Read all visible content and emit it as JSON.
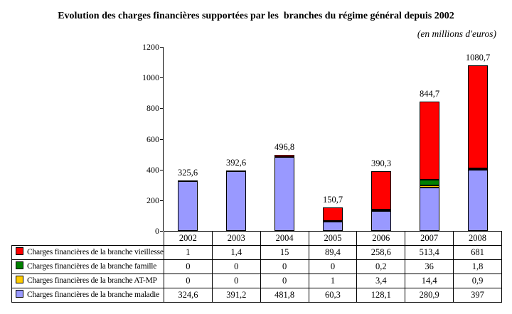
{
  "title": "Evolution des charges financières supportées par les  branches du régime général depuis 2002",
  "subtitle": "(en millions d'euros)",
  "chart_data": {
    "type": "bar",
    "stacked": true,
    "title": "Evolution des charges financières supportées par les  branches du régime général depuis 2002",
    "unit_note": "(en millions d'euros)",
    "categories": [
      "2002",
      "2003",
      "2004",
      "2005",
      "2006",
      "2007",
      "2008"
    ],
    "series": [
      {
        "name": "Charges financières de la branche vieillesse",
        "color": "#ff0000",
        "values": [
          1,
          1.4,
          15,
          89.4,
          258.6,
          513.4,
          681
        ],
        "labels": [
          "1",
          "1,4",
          "15",
          "89,4",
          "258,6",
          "513,4",
          "681"
        ]
      },
      {
        "name": "Charges financières de la branche famille",
        "color": "#008000",
        "values": [
          0,
          0,
          0,
          0,
          0.2,
          36,
          1.8
        ],
        "labels": [
          "0",
          "0",
          "0",
          "0",
          "0,2",
          "36",
          "1,8"
        ]
      },
      {
        "name": "Charges financières de la branche AT-MP",
        "color": "#ffcc00",
        "values": [
          0,
          0,
          0,
          1,
          3.4,
          14.4,
          0.9
        ],
        "labels": [
          "0",
          "0",
          "0",
          "1",
          "3,4",
          "14,4",
          "0,9"
        ]
      },
      {
        "name": "Charges financières de la branche maladie",
        "color": "#9999ff",
        "values": [
          324.6,
          391.2,
          481.8,
          60.3,
          128.1,
          280.9,
          397
        ],
        "labels": [
          "324,6",
          "391,2",
          "481,8",
          "60,3",
          "128,1",
          "280,9",
          "397"
        ]
      }
    ],
    "stack_order_bottom_to_top": [
      "maladie",
      "AT-MP",
      "famille",
      "vieillesse"
    ],
    "totals": [
      325.6,
      392.6,
      496.8,
      150.7,
      390.3,
      844.7,
      1080.7
    ],
    "totals_labels": [
      "325,6",
      "392,6",
      "496,8",
      "150,7",
      "390,3",
      "844,7",
      "1080,7"
    ],
    "yticks": [
      0,
      200,
      400,
      600,
      800,
      1000,
      1200
    ],
    "ylim": [
      0,
      1200
    ],
    "xlabel": "",
    "ylabel": "",
    "grid": false,
    "legend_position": "table-left",
    "bar_border_color": "#000000"
  }
}
